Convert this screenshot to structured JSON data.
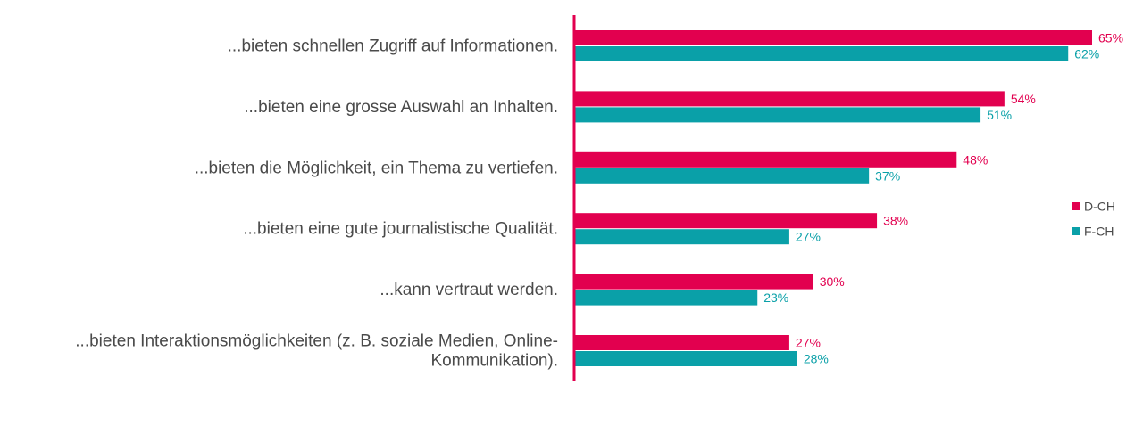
{
  "chart_data": {
    "type": "bar",
    "orientation": "horizontal",
    "title": "",
    "xlabel": "",
    "ylabel": "",
    "xlim": [
      0,
      65
    ],
    "grid": false,
    "legend_position": "right",
    "value_suffix": "%",
    "categories": [
      "...bieten schnellen Zugriff auf Informationen.",
      "...bieten eine grosse Auswahl an Inhalten.",
      "...bieten die Möglichkeit, ein Thema zu vertiefen.",
      "...bieten eine gute journalistische Qualität.",
      "...kann vertraut werden.",
      "...bieten Interaktionsmöglichkeiten (z. B. soziale Medien, Online-Kommunikation)."
    ],
    "category_lines": [
      [
        "...bieten schnellen Zugriff auf Informationen."
      ],
      [
        "...bieten eine grosse Auswahl an Inhalten."
      ],
      [
        "...bieten die Möglichkeit, ein Thema zu vertiefen."
      ],
      [
        "...bieten eine gute journalistische Qualität."
      ],
      [
        "...kann vertraut werden."
      ],
      [
        "...bieten Interaktionsmöglichkeiten (z. B. soziale Medien, Online-",
        "Kommunikation)."
      ]
    ],
    "series": [
      {
        "name": "D-CH",
        "color": "#e2004f",
        "values": [
          65,
          54,
          48,
          38,
          30,
          27
        ]
      },
      {
        "name": "F-CH",
        "color": "#0aa0a8",
        "values": [
          62,
          51,
          37,
          27,
          23,
          28
        ]
      }
    ],
    "axis_color": "#e2004f"
  }
}
